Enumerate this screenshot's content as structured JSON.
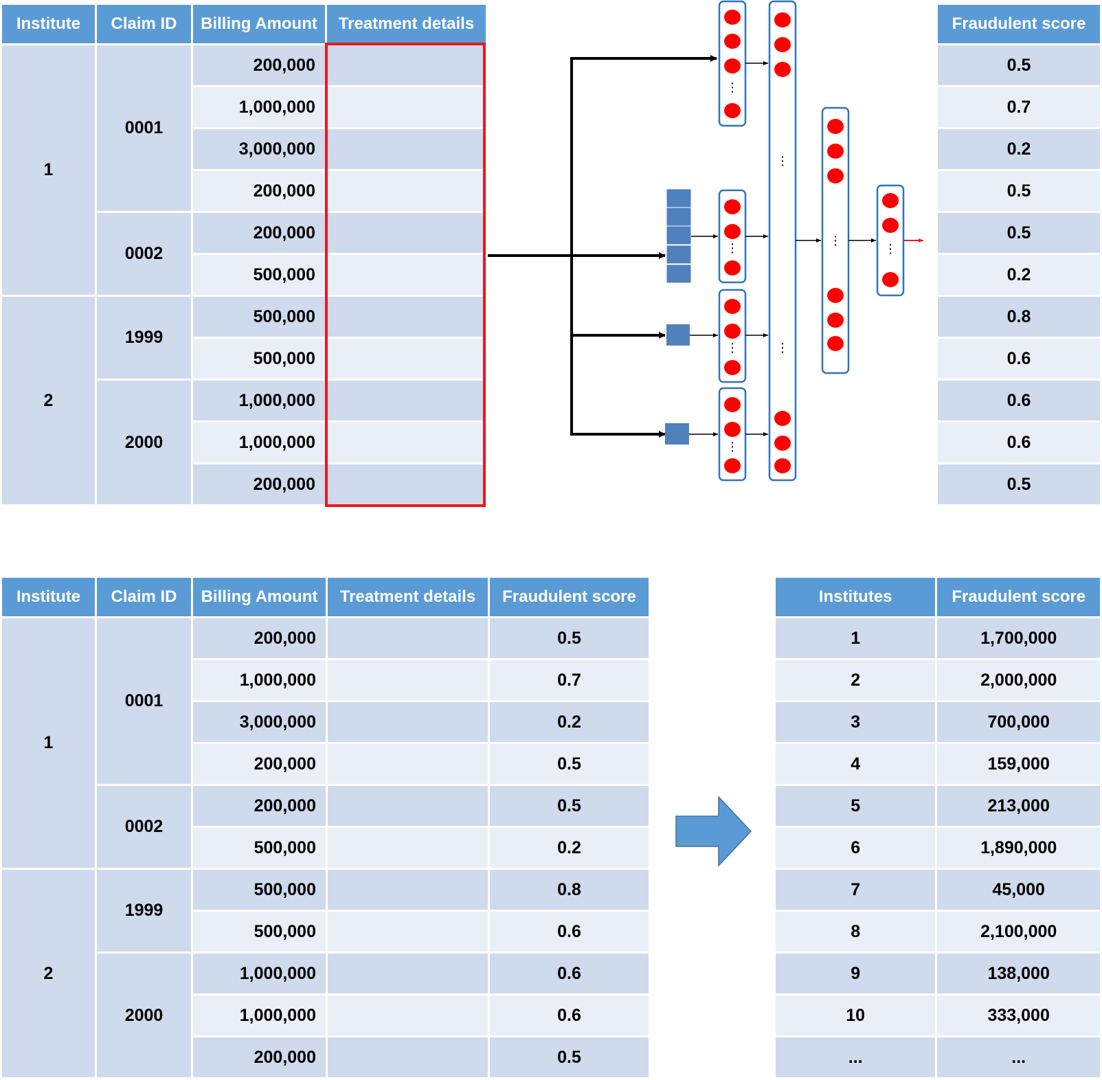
{
  "top_table": {
    "headers": [
      "Institute",
      "Claim ID",
      "Billing Amount",
      "Treatment details"
    ],
    "institutes": [
      {
        "id": "1",
        "claims": [
          {
            "id": "0001",
            "amounts": [
              "200,000",
              "1,000,000",
              "3,000,000",
              "200,000"
            ]
          },
          {
            "id": "0002",
            "amounts": [
              "200,000",
              "500,000"
            ]
          }
        ]
      },
      {
        "id": "2",
        "claims": [
          {
            "id": "1999",
            "amounts": [
              "500,000",
              "500,000"
            ]
          },
          {
            "id": "2000",
            "amounts": [
              "1,000,000",
              "1,000,000",
              "200,000"
            ]
          }
        ]
      }
    ]
  },
  "score_column": {
    "header": "Fraudulent score",
    "values": [
      "0.5",
      "0.7",
      "0.2",
      "0.5",
      "0.5",
      "0.2",
      "0.8",
      "0.6",
      "0.6",
      "0.6",
      "0.5"
    ]
  },
  "network": {
    "highlight_color": "#e8191d",
    "node_color": "#ff0000",
    "input_color": "#4f81bd",
    "ellipsis": "⋮"
  },
  "bottom_table": {
    "headers": [
      "Institute",
      "Claim ID",
      "Billing Amount",
      "Treatment details",
      "Fraudulent score"
    ],
    "institutes": [
      {
        "id": "1",
        "claims": [
          {
            "id": "0001",
            "rows": [
              [
                "200,000",
                "0.5"
              ],
              [
                "1,000,000",
                "0.7"
              ],
              [
                "3,000,000",
                "0.2"
              ],
              [
                "200,000",
                "0.5"
              ]
            ]
          },
          {
            "id": "0002",
            "rows": [
              [
                "200,000",
                "0.5"
              ],
              [
                "500,000",
                "0.2"
              ]
            ]
          }
        ]
      },
      {
        "id": "2",
        "claims": [
          {
            "id": "1999",
            "rows": [
              [
                "500,000",
                "0.8"
              ],
              [
                "500,000",
                "0.6"
              ]
            ]
          },
          {
            "id": "2000",
            "rows": [
              [
                "1,000,000",
                "0.6"
              ],
              [
                "1,000,000",
                "0.6"
              ],
              [
                "200,000",
                "0.5"
              ]
            ]
          }
        ]
      }
    ]
  },
  "institute_table": {
    "headers": [
      "Institutes",
      "Fraudulent score"
    ],
    "rows": [
      [
        "1",
        "1,700,000"
      ],
      [
        "2",
        "2,000,000"
      ],
      [
        "3",
        "700,000"
      ],
      [
        "4",
        "159,000"
      ],
      [
        "5",
        "213,000"
      ],
      [
        "6",
        "1,890,000"
      ],
      [
        "7",
        "45,000"
      ],
      [
        "8",
        "2,100,000"
      ],
      [
        "9",
        "138,000"
      ],
      [
        "10",
        "333,000"
      ],
      [
        "...",
        "..."
      ]
    ]
  }
}
